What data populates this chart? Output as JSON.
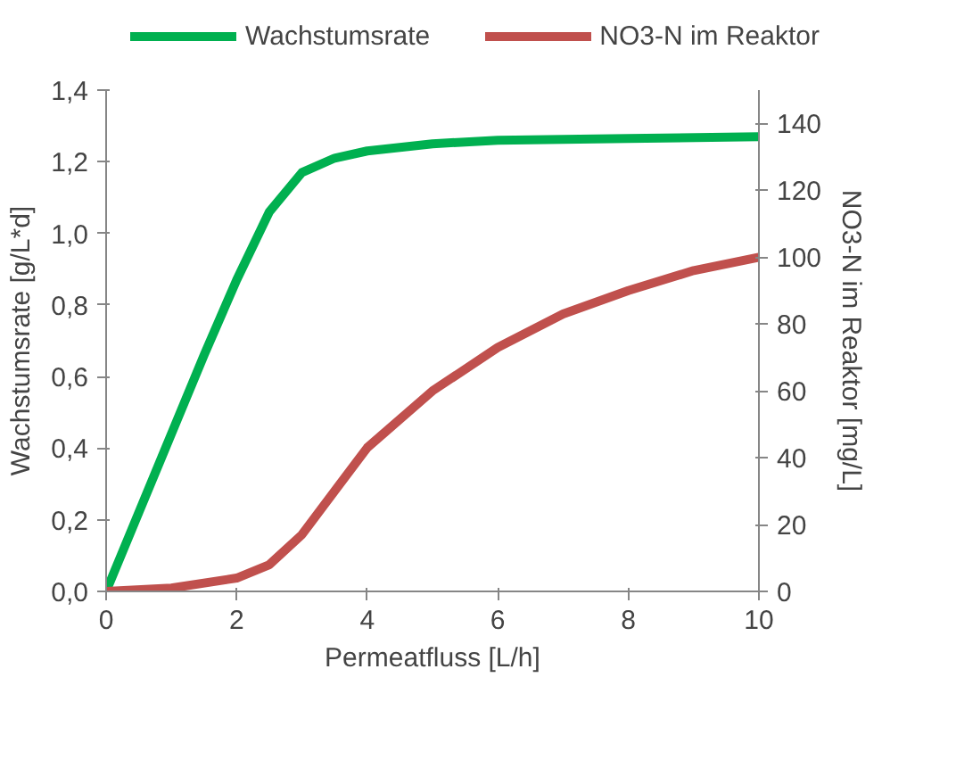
{
  "chart_data": {
    "type": "line",
    "xlabel": "Permeatfluss [L/h]",
    "ylabel": "Wachstumsrate [g/L*d]",
    "y2label": "NO3-N im Reaktor [mg/L]",
    "xlim": [
      0,
      10
    ],
    "xticks": [
      0,
      2,
      4,
      6,
      8,
      10
    ],
    "ylim": [
      0,
      1.4
    ],
    "yticks": [
      {
        "value": 0,
        "label": "0,0"
      },
      {
        "value": 0.2,
        "label": "0,2"
      },
      {
        "value": 0.4,
        "label": "0,4"
      },
      {
        "value": 0.6,
        "label": "0,6"
      },
      {
        "value": 0.8,
        "label": "0,8"
      },
      {
        "value": 1.0,
        "label": "1,0"
      },
      {
        "value": 1.2,
        "label": "1,2"
      },
      {
        "value": 1.4,
        "label": "1,4"
      }
    ],
    "y2lim": [
      0,
      150
    ],
    "y2ticks": [
      0,
      20,
      40,
      60,
      80,
      100,
      120,
      140
    ],
    "grid": false,
    "legend": "top",
    "marker": "none",
    "line_style": "solid",
    "series": [
      {
        "name": "Wachstumsrate",
        "color": "#00b050",
        "x": [
          0,
          0.5,
          1,
          1.5,
          2,
          2.5,
          3,
          3.5,
          4,
          5,
          6,
          8,
          10
        ],
        "values": [
          0,
          0.22,
          0.44,
          0.66,
          0.87,
          1.06,
          1.17,
          1.21,
          1.23,
          1.25,
          1.26,
          1.265,
          1.27
        ]
      },
      {
        "name": "NO3-N im Reaktor",
        "color": "#c0504d",
        "axis": "y2",
        "x": [
          0,
          1,
          2,
          2.5,
          3,
          3.5,
          4,
          5,
          6,
          7,
          8,
          9,
          10
        ],
        "values": [
          0,
          1,
          4,
          8,
          17,
          30,
          43,
          60,
          73,
          83,
          90,
          96,
          100
        ]
      }
    ]
  }
}
